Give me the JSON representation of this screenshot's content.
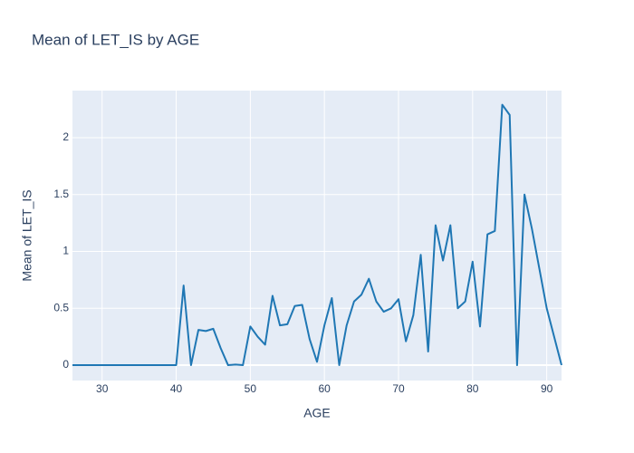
{
  "chart_data": {
    "type": "line",
    "title": "Mean of LET_IS by AGE",
    "x_label": "AGE",
    "y_label": "Mean of LET_IS",
    "x": [
      26,
      27,
      28,
      29,
      30,
      31,
      32,
      33,
      34,
      35,
      36,
      37,
      38,
      39,
      40,
      41,
      42,
      43,
      44,
      45,
      46,
      47,
      48,
      49,
      50,
      51,
      52,
      53,
      54,
      55,
      56,
      57,
      58,
      59,
      60,
      61,
      62,
      63,
      64,
      65,
      66,
      67,
      68,
      69,
      70,
      71,
      72,
      73,
      74,
      75,
      76,
      77,
      78,
      79,
      80,
      81,
      82,
      83,
      84,
      85,
      86,
      87,
      88,
      89,
      90,
      91,
      92
    ],
    "series": [
      {
        "name": "LET_IS",
        "color": "#1f77b4",
        "values": [
          0,
          0,
          0,
          0,
          0,
          0,
          0,
          0,
          0,
          0,
          0,
          0,
          0,
          0,
          0,
          0.7,
          0,
          0.31,
          0.3,
          0.32,
          0.15,
          0,
          0.005,
          0,
          0.34,
          0.25,
          0.18,
          0.61,
          0.35,
          0.36,
          0.52,
          0.53,
          0.23,
          0.03,
          0.35,
          0.59,
          0,
          0.35,
          0.56,
          0.62,
          0.76,
          0.56,
          0.47,
          0.5,
          0.58,
          0.21,
          0.44,
          0.97,
          0.12,
          1.23,
          0.92,
          1.23,
          0.5,
          0.56,
          0.91,
          0.34,
          1.15,
          1.18,
          2.29,
          2.2,
          0,
          1.5,
          1.2,
          0.85,
          0.5,
          0.25,
          0
        ]
      }
    ],
    "xlim": [
      26,
      92
    ],
    "ylim": [
      -0.135,
      2.414
    ],
    "xticks": [
      30,
      40,
      50,
      60,
      70,
      80,
      90
    ],
    "yticks": [
      0,
      0.5,
      1,
      1.5,
      2
    ],
    "grid": true
  }
}
